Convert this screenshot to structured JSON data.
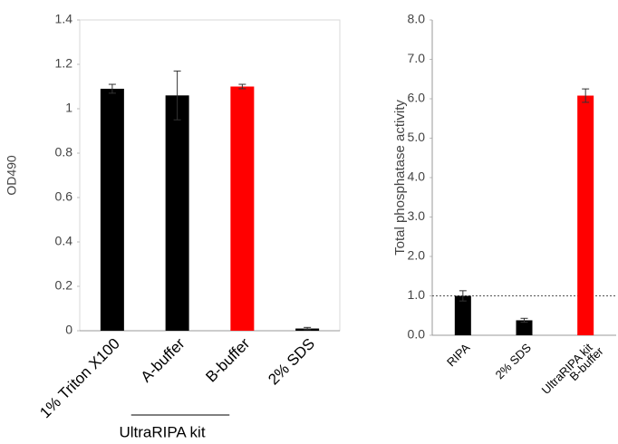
{
  "chart_data": [
    {
      "type": "bar",
      "y_label": "OD490",
      "categories": [
        "1% Triton X100",
        "A-buffer",
        "B-buffer",
        "2% SDS"
      ],
      "values": [
        1.09,
        1.06,
        1.1,
        0.01
      ],
      "errors": [
        0.02,
        0.11,
        0.01,
        0.005
      ],
      "colors": [
        "#000000",
        "#000000",
        "#ff0000",
        "#000000"
      ],
      "ylim": [
        0,
        1.4
      ],
      "yticks": [
        0,
        0.2,
        0.4,
        0.6,
        0.8,
        1,
        1.2,
        1.4
      ],
      "group_label": "UltraRIPA kit"
    },
    {
      "type": "bar",
      "y_label": "Total phosphatase activity",
      "categories": [
        "RIPA",
        "2% SDS",
        [
          "UltraRIPA kit",
          "B-buffer"
        ]
      ],
      "values": [
        1.0,
        0.38,
        6.08
      ],
      "errors": [
        0.13,
        0.05,
        0.17
      ],
      "colors": [
        "#000000",
        "#000000",
        "#ff0000"
      ],
      "ylim": [
        0,
        8
      ],
      "yticks": [
        {
          "value": 0,
          "label": "0.0"
        },
        {
          "value": 1,
          "label": "1.0"
        },
        {
          "value": 2,
          "label": "2.0"
        },
        {
          "value": 3,
          "label": "3.0"
        },
        {
          "value": 4,
          "label": "4.0"
        },
        {
          "value": 5,
          "label": "5.0"
        },
        {
          "value": 6,
          "label": "6.0"
        },
        {
          "value": 7,
          "label": "7.0"
        },
        {
          "value": 8,
          "label": "8.0"
        }
      ],
      "ref_line": 1
    }
  ]
}
